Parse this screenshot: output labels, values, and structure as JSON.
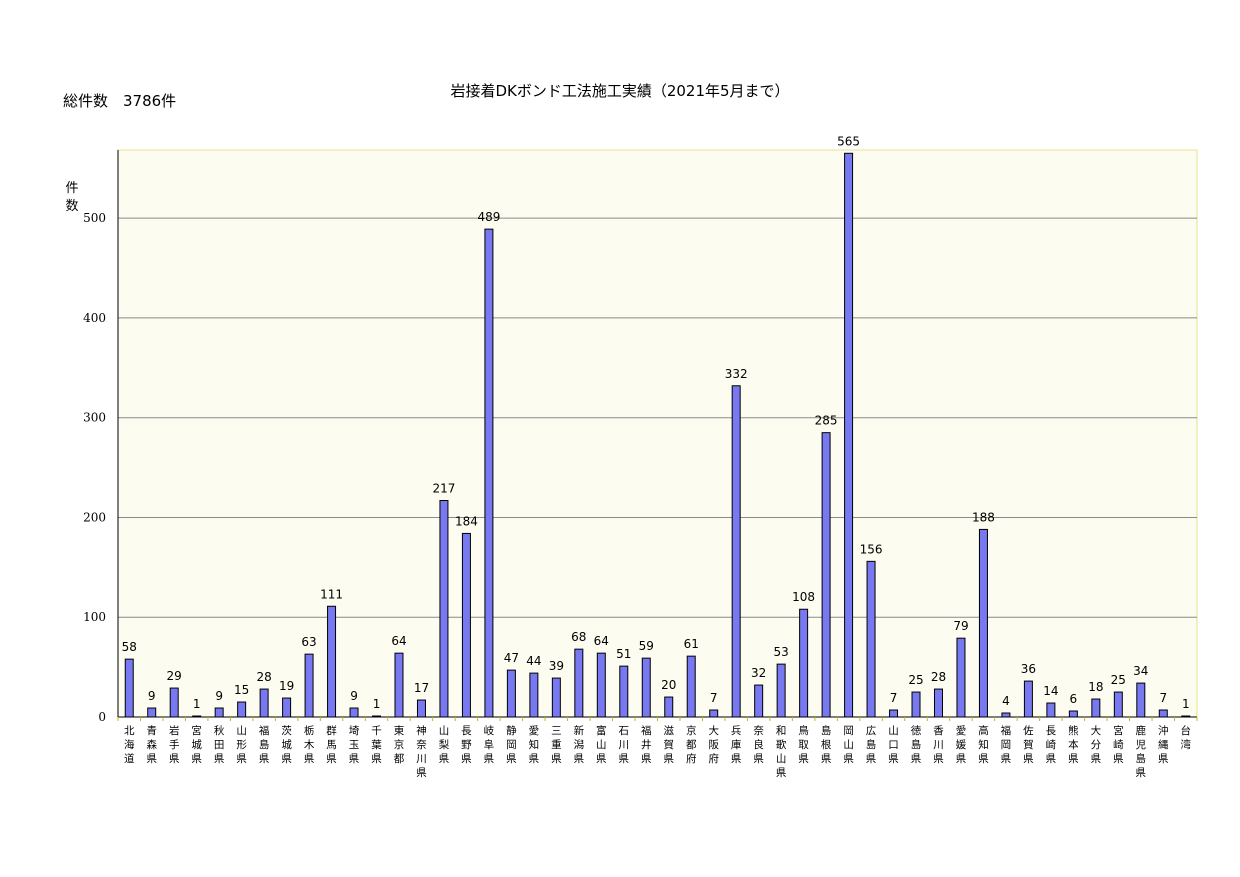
{
  "header": {
    "title": "岩接着DKボンド工法施工実績（2021年5月まで）",
    "total": "総件数　3786件"
  },
  "colors": {
    "plot_background": "#fdfcf0",
    "bar_fill": "#7878f0",
    "bar_stroke": "#000000",
    "gridline": "#8a8a8a",
    "plot_border": "#e8e090"
  },
  "chart_data": {
    "type": "bar",
    "title": "岩接着DKボンド工法施工実績（2021年5月まで）",
    "xlabel": "",
    "ylabel": "件数",
    "ylim": [
      0,
      570
    ],
    "yticks": [
      0,
      100,
      200,
      300,
      400,
      500
    ],
    "grid": true,
    "legend": "none",
    "categories": [
      "北海道",
      "青森県",
      "岩手県",
      "宮城県",
      "秋田県",
      "山形県",
      "福島県",
      "茨城県",
      "栃木県",
      "群馬県",
      "埼玉県",
      "千葉県",
      "東京都",
      "神奈川県",
      "山梨県",
      "長野県",
      "岐阜県",
      "静岡県",
      "愛知県",
      "三重県",
      "新潟県",
      "富山県",
      "石川県",
      "福井県",
      "滋賀県",
      "京都府",
      "大阪府",
      "兵庫県",
      "奈良県",
      "和歌山県",
      "鳥取県",
      "島根県",
      "岡山県",
      "広島県",
      "山口県",
      "徳島県",
      "香川県",
      "愛媛県",
      "高知県",
      "福岡県",
      "佐賀県",
      "長崎県",
      "熊本県",
      "大分県",
      "宮崎県",
      "鹿児島県",
      "沖縄県",
      "台湾"
    ],
    "values": [
      58,
      9,
      29,
      1,
      9,
      15,
      28,
      19,
      63,
      111,
      9,
      1,
      64,
      17,
      217,
      184,
      489,
      47,
      44,
      39,
      68,
      64,
      51,
      59,
      20,
      61,
      7,
      332,
      32,
      53,
      108,
      285,
      565,
      156,
      7,
      25,
      28,
      79,
      188,
      4,
      36,
      14,
      6,
      18,
      25,
      34,
      7,
      1
    ]
  }
}
